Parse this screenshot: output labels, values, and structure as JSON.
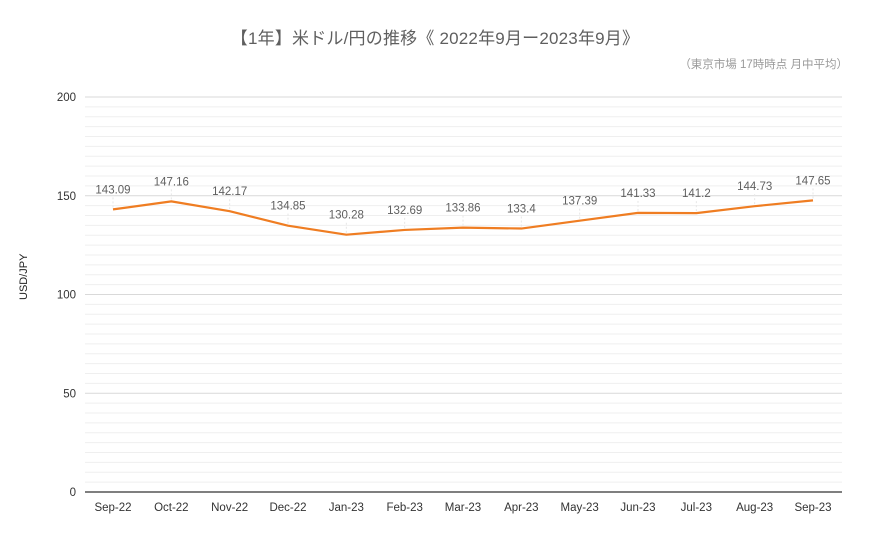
{
  "chart_data": {
    "type": "line",
    "title": "【1年】米ドル/円の推移《 2022年9月ー2023年9月》",
    "subtitle": "（東京市場 17時時点 月中平均）",
    "xlabel": "",
    "ylabel": "USD/JPY",
    "ylim": [
      0,
      200
    ],
    "yticks": [
      0,
      50,
      100,
      150,
      200
    ],
    "minor_grid_step": 5,
    "grid": true,
    "legend": "none",
    "categories": [
      "Sep-22",
      "Oct-22",
      "Nov-22",
      "Dec-22",
      "Jan-23",
      "Feb-23",
      "Mar-23",
      "Apr-23",
      "May-23",
      "Jun-23",
      "Jul-23",
      "Aug-23",
      "Sep-23"
    ],
    "series": [
      {
        "name": "USD/JPY",
        "color": "#ef7d22",
        "values": [
          143.09,
          147.16,
          142.17,
          134.85,
          130.28,
          132.69,
          133.86,
          133.4,
          137.39,
          141.33,
          141.2,
          144.73,
          147.65
        ],
        "labels": [
          "143.09",
          "147.16",
          "142.17",
          "134.85",
          "130.28",
          "132.69",
          "133.86",
          "133.4",
          "137.39",
          "141.33",
          "141.2",
          "144.73",
          "147.65"
        ]
      }
    ]
  },
  "colors": {
    "line": "#ef7d22",
    "grid_major": "#d9d9d9",
    "grid_minor": "#efefef",
    "axis": "#333333",
    "title": "#5f5f5f",
    "subtitle": "#9a9a9a",
    "data_label": "#5f5f5f"
  }
}
